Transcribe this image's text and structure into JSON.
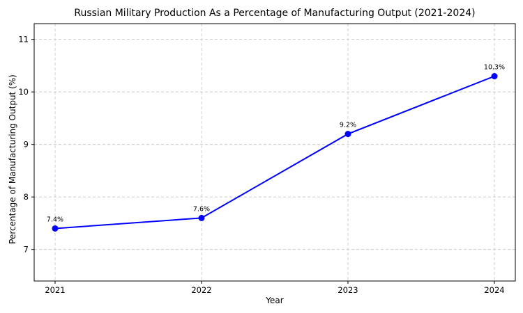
{
  "chart_data": {
    "type": "line",
    "title": "Russian Military Production As a Percentage of Manufacturing Output (2021-2024)",
    "xlabel": "Year",
    "ylabel": "Percentage of Manufacturing Output (%)",
    "categories": [
      "2021",
      "2022",
      "2023",
      "2024"
    ],
    "series": [
      {
        "values": [
          7.4,
          7.6,
          9.2,
          10.3
        ],
        "data_labels": [
          "7.4%",
          "7.6%",
          "9.2%",
          "10.3%"
        ],
        "color": "#0000ff",
        "marker": "circle"
      }
    ],
    "ylim": [
      6.4,
      11.3
    ],
    "yticks": [
      7,
      8,
      9,
      10,
      11
    ],
    "ytick_labels": [
      "7",
      "8",
      "9",
      "10",
      "11"
    ],
    "grid": true,
    "legend": false
  }
}
